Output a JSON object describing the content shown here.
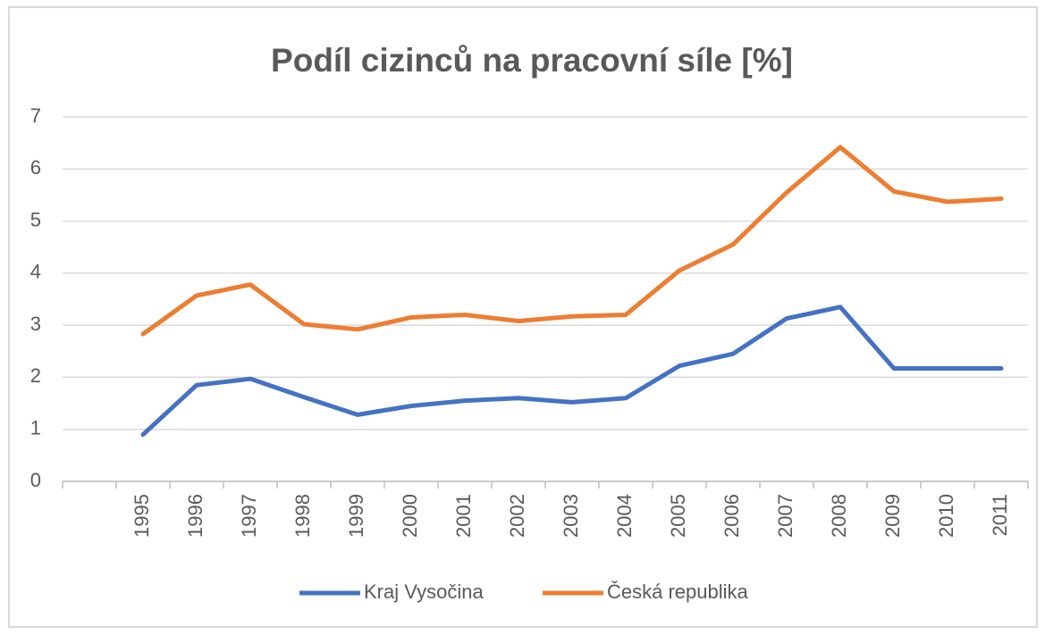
{
  "chart_data": {
    "type": "line",
    "title": "Podíl  cizinců na pracovní síle [%]",
    "categories": [
      null,
      "1995",
      "1996",
      "1997",
      "1998",
      "1999",
      "2000",
      "2001",
      "2002",
      "2003",
      "2004",
      "2005",
      "2006",
      "2007",
      "2008",
      "2009",
      "2010",
      "2011"
    ],
    "series": [
      {
        "name": "Kraj Vysočina",
        "color": "#4472c4",
        "values": [
          null,
          0.9,
          1.85,
          1.97,
          1.62,
          1.28,
          1.45,
          1.55,
          1.6,
          1.52,
          1.6,
          2.22,
          2.45,
          3.13,
          3.35,
          2.17,
          2.17,
          2.17
        ]
      },
      {
        "name": "Česká republika",
        "color": "#ed7d31",
        "values": [
          null,
          2.83,
          3.57,
          3.78,
          3.02,
          2.92,
          3.15,
          3.2,
          3.08,
          3.17,
          3.2,
          4.05,
          4.55,
          5.55,
          6.42,
          5.57,
          5.37,
          5.43
        ]
      }
    ],
    "ylim": [
      0,
      7
    ],
    "yticks": [
      0,
      1,
      2,
      3,
      4,
      5,
      6,
      7
    ],
    "grid": true,
    "legend": "bottom"
  }
}
